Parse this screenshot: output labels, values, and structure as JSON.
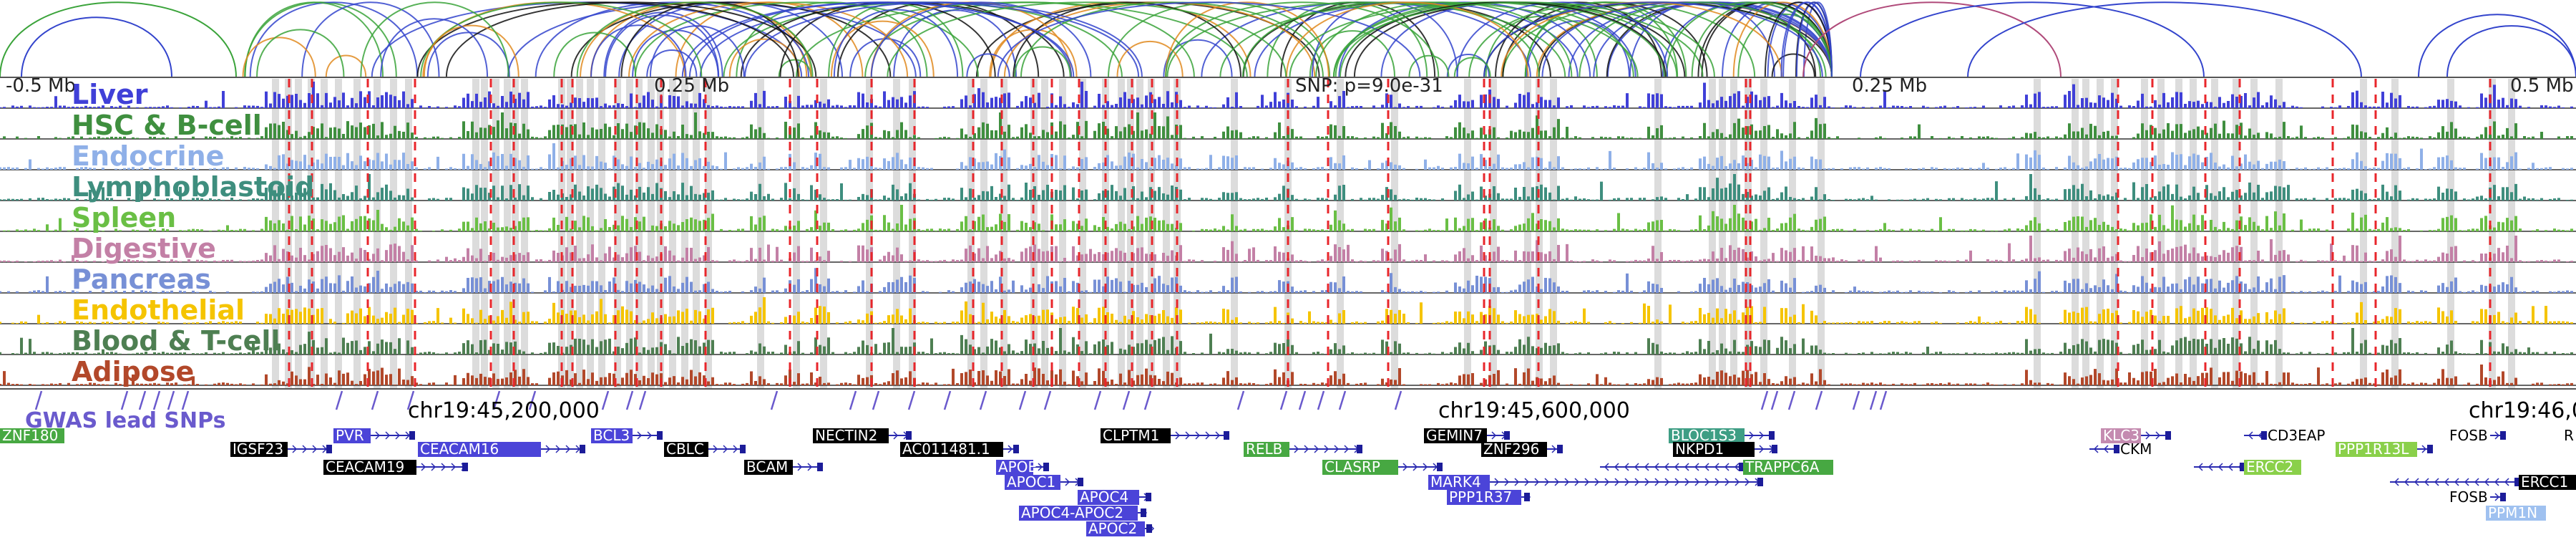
{
  "browser": {
    "axis_top": {
      "left": "-0.5 Mb",
      "mid_left": "0.25 Mb",
      "snp": "SNP: p=9.0e-31",
      "mid_right": "0.25 Mb",
      "right": "0.5 Mb"
    },
    "chromosome_labels": [
      "chr19:45,200,000",
      "chr19:45,600,000",
      "chr19:46,0"
    ],
    "gwas_label": "GWAS lead SNPs",
    "colors": {
      "background": "#ffffff",
      "highlight_bar": "#dcdcdc",
      "snp_line": "#e8262b",
      "axis": "#555555",
      "arc_blue": "#3344cc",
      "arc_green": "#3aa33a",
      "arc_black": "#111111",
      "arc_pink": "#b04a7a",
      "arc_orange": "#e08a1e"
    }
  },
  "tracks": [
    {
      "label": "Liver",
      "color": "#4040d8"
    },
    {
      "label": "HSC & B-cell",
      "color": "#3f8f3f"
    },
    {
      "label": "Endocrine",
      "color": "#8fb0e8"
    },
    {
      "label": "Lymphoblastoid",
      "color": "#3e8e7e"
    },
    {
      "label": "Spleen",
      "color": "#6abf45"
    },
    {
      "label": "Digestive",
      "color": "#c380a6"
    },
    {
      "label": "Pancreas",
      "color": "#7790d6"
    },
    {
      "label": "Endothelial",
      "color": "#f5c400"
    },
    {
      "label": "Blood & T-cell",
      "color": "#4e7f52"
    },
    {
      "label": "Adipose",
      "color": "#b2482a"
    }
  ],
  "genes": [
    {
      "name": "ZNF180",
      "style": "green"
    },
    {
      "name": "IGSF23",
      "style": "black"
    },
    {
      "name": "PVR",
      "style": "blue"
    },
    {
      "name": "CEACAM16",
      "style": "blue"
    },
    {
      "name": "CEACAM19",
      "style": "black"
    },
    {
      "name": "BCL3",
      "style": "blue"
    },
    {
      "name": "CBLC",
      "style": "black"
    },
    {
      "name": "BCAM",
      "style": "black"
    },
    {
      "name": "NECTIN2",
      "style": "black"
    },
    {
      "name": "AC011481.1",
      "style": "black"
    },
    {
      "name": "APOE",
      "style": "blue"
    },
    {
      "name": "APOC1",
      "style": "blue"
    },
    {
      "name": "APOC4",
      "style": "blue"
    },
    {
      "name": "APOC4-APOC2",
      "style": "blue"
    },
    {
      "name": "APOC2",
      "style": "blue"
    },
    {
      "name": "CLPTM1",
      "style": "black"
    },
    {
      "name": "RELB",
      "style": "green"
    },
    {
      "name": "CLASRP",
      "style": "green"
    },
    {
      "name": "GEMIN7",
      "style": "black"
    },
    {
      "name": "ZNF296",
      "style": "black"
    },
    {
      "name": "MARK4",
      "style": "blue"
    },
    {
      "name": "PPP1R37",
      "style": "blue"
    },
    {
      "name": "BLOC1S3",
      "style": "teal"
    },
    {
      "name": "NKPD1",
      "style": "black"
    },
    {
      "name": "TRAPPC6A",
      "style": "green"
    },
    {
      "name": "KLC3",
      "style": "pink"
    },
    {
      "name": "CKM",
      "style": "plain"
    },
    {
      "name": "CD3EAP",
      "style": "plain"
    },
    {
      "name": "PPP1R13L",
      "style": "lightgreen"
    },
    {
      "name": "ERCC2",
      "style": "lightgreen"
    },
    {
      "name": "FOSB",
      "style": "plain"
    },
    {
      "name": "FOSB",
      "style": "plain"
    },
    {
      "name": "ERCC1",
      "style": "black"
    },
    {
      "name": "PPM1N",
      "style": "lightblue"
    },
    {
      "name": "R",
      "style": "plain"
    }
  ]
}
